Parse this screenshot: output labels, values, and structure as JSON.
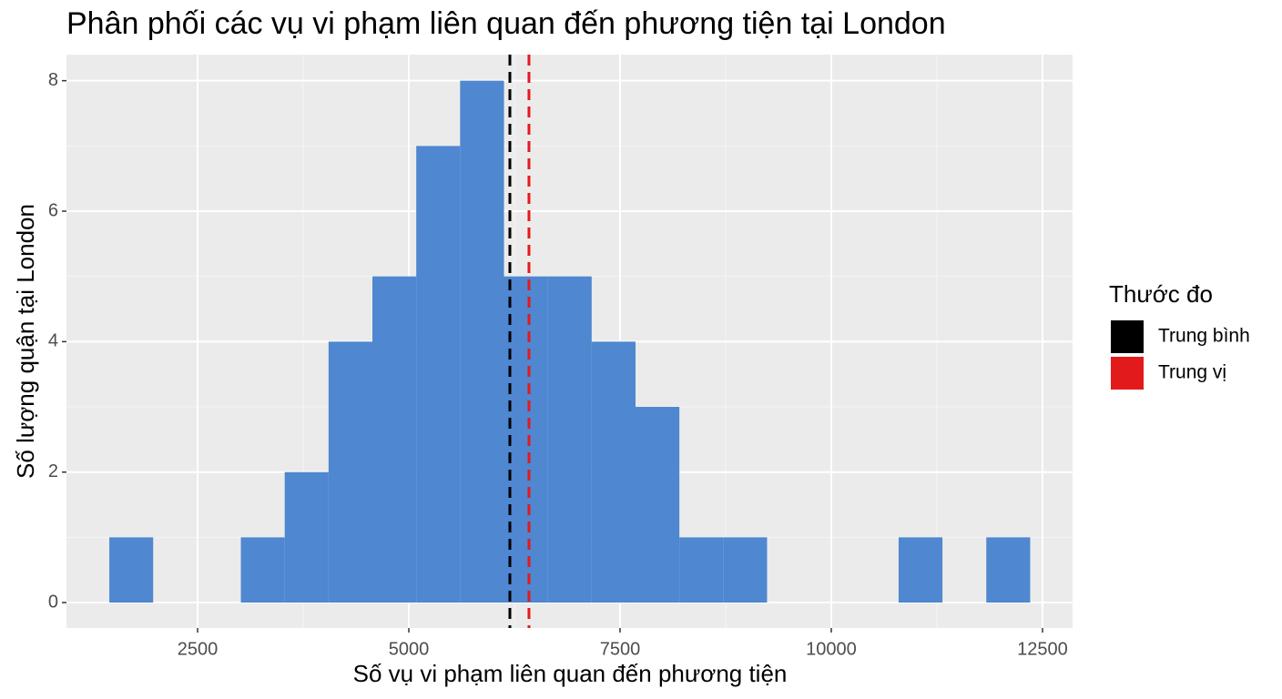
{
  "chart_data": {
    "type": "histogram",
    "title": "Phân phối các vụ vi phạm liên quan đến phương tiện tại London",
    "x_label": "Số vụ vi phạm liên quan đến phương tiện",
    "y_label": "Số lượng quận tại London",
    "bins": [
      1455,
      1974,
      2493,
      3012,
      3531,
      4050,
      4569,
      5088,
      5607,
      6126,
      6645,
      7164,
      7683,
      8202,
      8721,
      9240,
      9759,
      10278,
      10797,
      11316,
      11835,
      12354
    ],
    "counts": [
      1,
      0,
      0,
      1,
      2,
      4,
      5,
      7,
      8,
      5,
      5,
      4,
      3,
      1,
      1,
      0,
      0,
      0,
      1,
      0,
      1
    ],
    "color": "#4f87d0",
    "lines": [
      {
        "name": "Trung bình",
        "value": 6196,
        "color": "#000000"
      },
      {
        "name": "Trung vị",
        "value": 6422,
        "color": "#e31a1c"
      }
    ],
    "legend_title": "Thước đo",
    "legend_position": "right",
    "xlim": [
      948,
      12856
    ],
    "xticks": [
      2500,
      5000,
      7500,
      10000,
      12500
    ],
    "ylim": [
      -0.39,
      8.4
    ],
    "yticks": [
      0,
      2,
      4,
      6,
      8
    ],
    "grid": true
  }
}
